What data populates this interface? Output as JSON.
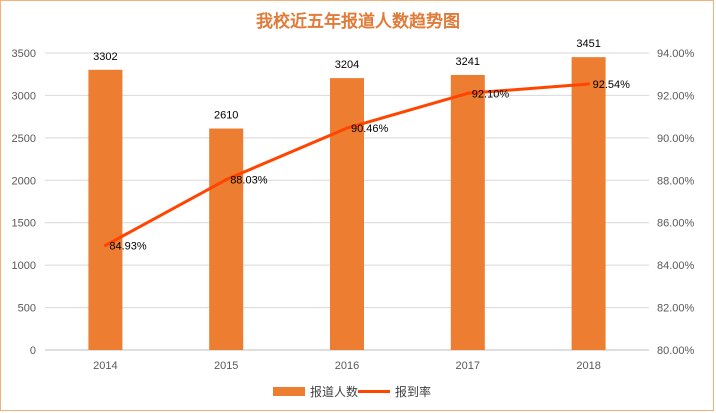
{
  "chart_data": {
    "type": "bar",
    "title": "我校近五年报道人数趋势图",
    "categories": [
      "2014",
      "2015",
      "2016",
      "2017",
      "2018"
    ],
    "series": [
      {
        "name": "报道人数",
        "type": "bar",
        "axis": "left",
        "values": [
          3302,
          2610,
          3204,
          3241,
          3451
        ],
        "labels": [
          "3302",
          "2610",
          "3204",
          "3241",
          "3451"
        ],
        "color": "#ed7d31"
      },
      {
        "name": "报到率",
        "type": "line",
        "axis": "right",
        "values": [
          84.93,
          88.03,
          90.46,
          92.1,
          92.54
        ],
        "labels": [
          "84.93%",
          "88.03%",
          "90.46%",
          "92.10%",
          "92.54%"
        ],
        "color": "#ff4500"
      }
    ],
    "y_left": {
      "min": 0,
      "max": 3500,
      "ticks": [
        "0",
        "500",
        "1000",
        "1500",
        "2000",
        "2500",
        "3000",
        "3500"
      ]
    },
    "y_right": {
      "min": 80,
      "max": 94,
      "ticks": [
        "80.00%",
        "82.00%",
        "84.00%",
        "86.00%",
        "88.00%",
        "90.00%",
        "92.00%",
        "94.00%"
      ]
    },
    "grid": true,
    "legend_position": "bottom",
    "colors": {
      "frame": "#f0b27a",
      "title": "#e07b39",
      "grid": "#d9d9d9",
      "axis": "#bfbfbf"
    }
  }
}
